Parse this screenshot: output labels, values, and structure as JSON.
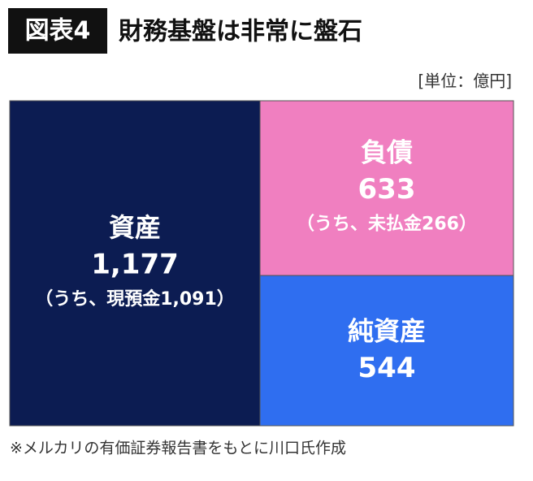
{
  "chart_data": {
    "type": "balance_sheet",
    "badge": "図表4",
    "title": "財務基盤は非常に盤石",
    "unit": "[単位：億円]",
    "note": "※メルカリの有価証券報告書をもとに川口氏作成",
    "categories": [
      "資産",
      "負債",
      "純資産"
    ],
    "values": [
      1177,
      633,
      544
    ],
    "value_labels": [
      "1,177",
      "633",
      "544"
    ],
    "details": [
      "（うち、現預金1,091）",
      "（うち、未払金266）",
      null
    ],
    "sides": [
      "left",
      "right",
      "right"
    ],
    "colors": [
      "#0c1c52",
      "#f07fc0",
      "#2f6ef0"
    ]
  }
}
